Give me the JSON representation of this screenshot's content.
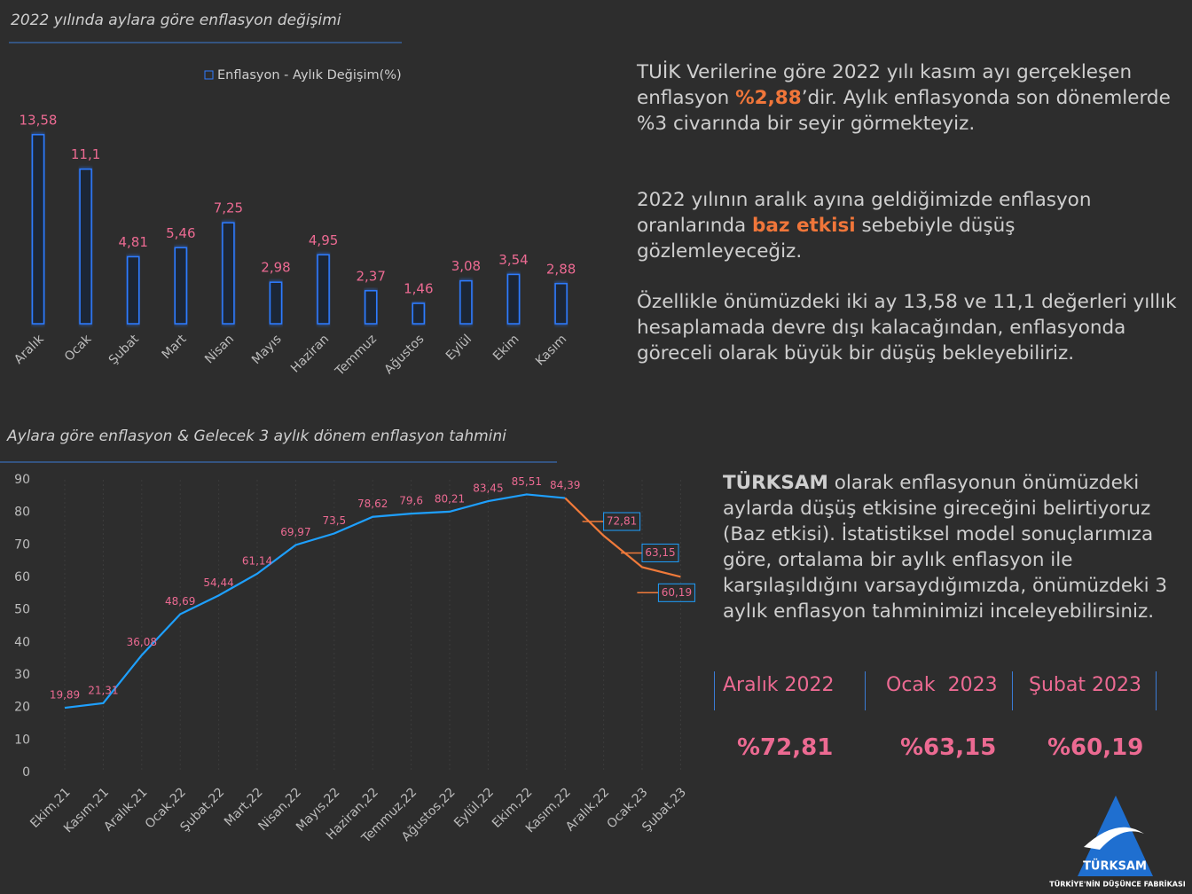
{
  "chart_data": [
    {
      "type": "bar",
      "title": "2022 yılında aylara göre enflasyon değişimi",
      "legend": "Enflasyon - Aylık Değişim(%)",
      "color": "#2f7bff",
      "categories": [
        "Aralık",
        "Ocak",
        "Şubat",
        "Mart",
        "Nisan",
        "Mayıs",
        "Haziran",
        "Temmuz",
        "Ağustos",
        "Eylül",
        "Ekim",
        "Kasım"
      ],
      "values": [
        13.58,
        11.1,
        4.81,
        5.46,
        7.25,
        2.98,
        4.95,
        2.37,
        1.46,
        3.08,
        3.54,
        2.88
      ],
      "value_labels": [
        "13,58",
        "11,1",
        "4,81",
        "5,46",
        "7,25",
        "2,98",
        "4,95",
        "2,37",
        "1,46",
        "3,08",
        "3,54",
        "2,88"
      ]
    },
    {
      "type": "line",
      "title": "Aylara göre enflasyon & Gelecek 3 aylık dönem enflasyon tahmini",
      "categories": [
        "Ekim,21",
        "Kasım,21",
        "Aralık,21",
        "Ocak,22",
        "Şubat,22",
        "Mart,22",
        "Nisan,22",
        "Mayıs,22",
        "Haziran,22",
        "Temmuz,22",
        "Ağustos,22",
        "Eylül,22",
        "Ekim,22",
        "Kasım,22",
        "Aralık,22",
        "Ocak,23",
        "Şubat,23"
      ],
      "ylim": [
        0,
        90
      ],
      "yticks": [
        0,
        10,
        20,
        30,
        40,
        50,
        60,
        70,
        80,
        90
      ],
      "series": [
        {
          "color": "#1ea0ff",
          "values": [
            19.89,
            21.31,
            36.08,
            48.69,
            54.44,
            61.14,
            69.97,
            73.5,
            78.62,
            79.6,
            80.21,
            83.45,
            85.51,
            84.39,
            null,
            null,
            null
          ],
          "value_labels": [
            "19,89",
            "21,31",
            "36,08",
            "48,69",
            "54,44",
            "61,14",
            "69,97",
            "73,5",
            "78,62",
            "79,6",
            "80,21",
            "83,45",
            "85,51",
            "84,39",
            null,
            null,
            null
          ]
        },
        {
          "color": "#f07a3a",
          "values": [
            null,
            null,
            null,
            null,
            null,
            null,
            null,
            null,
            null,
            null,
            null,
            null,
            null,
            84.39,
            72.81,
            63.15,
            60.19
          ],
          "value_labels": [
            null,
            null,
            null,
            null,
            null,
            null,
            null,
            null,
            null,
            null,
            null,
            null,
            null,
            null,
            "72,81",
            "63,15",
            "60,19"
          ]
        }
      ]
    }
  ],
  "text": {
    "p1": [
      "TUİK Verilerine göre 2022 yılı kasım ayı gerçekleşen enflasyon ",
      "%2,88",
      "’dir. Aylık enflasyonda son dönemlerde %3 civarında bir seyir görmekteyiz."
    ],
    "p2": [
      "2022 yılının aralık ayına geldiğimizde enflasyon oranlarında ",
      "baz etkisi",
      " sebebiyle düşüş gözlemleyeceğiz."
    ],
    "p3": "Özellikle önümüzdeki iki ay 13,58 ve 11,1 değerleri yıllık hesaplamada devre dışı kalacağından, enflasyonda göreceli olarak büyük bir düşüş bekleyebiliriz.",
    "p4": [
      "TÜRKSAM",
      " olarak enflasyonun önümüzdeki aylarda düşüş etkisine gireceğini belirtiyoruz (Baz etkisi). İstatistiksel model sonuçlarımıza göre, ortalama bir aylık enflasyon ile karşılaşıldığını varsaydığımızda, önümüzdeki 3 aylık enflasyon tahminimizi inceleyebilirsiniz."
    ]
  },
  "forecast_table": {
    "headers": [
      "Aralık 2022",
      "Ocak  2023",
      "Şubat 2023"
    ],
    "values": [
      "%72,81",
      "%63,15",
      "%60,19"
    ]
  },
  "logo": {
    "name": "TÜRKSAM",
    "tagline": "TÜRKİYE'NİN DÜŞÜNCE FABRİKASI"
  }
}
